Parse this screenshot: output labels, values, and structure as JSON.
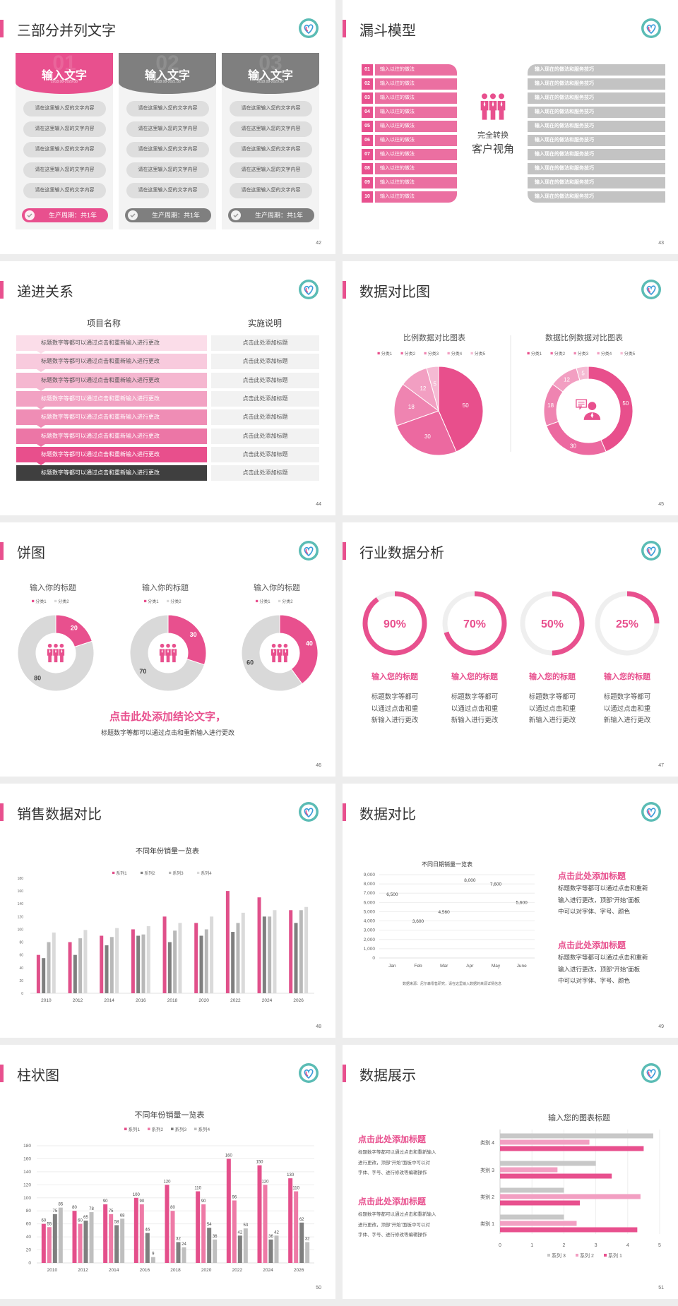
{
  "colors": {
    "accent": "#e8508e",
    "gray": "#7f7f7f",
    "light_gray": "#d9d9d9",
    "logo_teal": "#5bbcb5"
  },
  "s42": {
    "title": "三部分并列文字",
    "page": "42",
    "cards": [
      {
        "num": "01",
        "heading": "输入文字",
        "date": "2018.08-2029.08",
        "color": "#e8508e",
        "items": [
          "请在这里输入您的文字内容",
          "请在这里输入您的文字内容",
          "请在这里输入您的文字内容",
          "请在这里输入您的文字内容",
          "请在这里输入您的文字内容"
        ],
        "footer": "生产周期：共1年"
      },
      {
        "num": "02",
        "heading": "输入文字",
        "date": "2018.08-2021.08",
        "color": "#7f7f7f",
        "items": [
          "请在这里输入您的文字内容",
          "请在这里输入您的文字内容",
          "请在这里输入您的文字内容",
          "请在这里输入您的文字内容",
          "请在这里输入您的文字内容"
        ],
        "footer": "生产周期：共1年"
      },
      {
        "num": "03",
        "heading": "输入文字",
        "date": "2018.08-2029.08",
        "color": "#7f7f7f",
        "items": [
          "请在这里输入您的文字内容",
          "请在这里输入您的文字内容",
          "请在这里输入您的文字内容",
          "请在这里输入您的文字内容",
          "请在这里输入您的文字内容"
        ],
        "footer": "生产周期：共1年"
      }
    ]
  },
  "s43": {
    "title": "漏斗模型",
    "page": "43",
    "left": [
      {
        "num": "01",
        "label": "输入以往的做法"
      },
      {
        "num": "02",
        "label": "输入以往的做法"
      },
      {
        "num": "03",
        "label": "输入以往的做法"
      },
      {
        "num": "04",
        "label": "输入以往的做法"
      },
      {
        "num": "05",
        "label": "输入以往的做法"
      },
      {
        "num": "06",
        "label": "输入以往的做法"
      },
      {
        "num": "07",
        "label": "输入以往的做法"
      },
      {
        "num": "08",
        "label": "输入以往的做法"
      },
      {
        "num": "09",
        "label": "输入以往的做法"
      },
      {
        "num": "10",
        "label": "输入以往的做法"
      }
    ],
    "right": [
      "输入现在的做法和服务技巧",
      "输入现在的做法和服务技巧",
      "输入现在的做法和服务技巧",
      "输入现在的做法和服务技巧",
      "输入现在的做法和服务技巧",
      "输入现在的做法和服务技巧",
      "输入现在的做法和服务技巧",
      "输入现在的做法和服务技巧",
      "输入现在的做法和服务技巧",
      "输入现在的做法和服务技巧"
    ],
    "center_line1": "完全转换",
    "center_line2": "客户视角"
  },
  "s44": {
    "title": "递进关系",
    "page": "44",
    "col1": "项目名称",
    "col2": "实施说明",
    "rows": [
      {
        "item": "标题数字等都可以通过点击和重新输入进行更改",
        "note": "点击此处添加标题",
        "color": "#fbdde9"
      },
      {
        "item": "标题数字等都可以通过点击和重新输入进行更改",
        "note": "点击此处添加标题",
        "color": "#f8cadd"
      },
      {
        "item": "标题数字等都可以通过点击和重新输入进行更改",
        "note": "点击此处添加标题",
        "color": "#f5b7d0"
      },
      {
        "item": "标题数字等都可以通过点击和重新输入进行更改",
        "note": "点击此处添加标题",
        "color": "#f2a2c3"
      },
      {
        "item": "标题数字等都可以通过点击和重新输入进行更改",
        "note": "点击此处添加标题",
        "color": "#ef8db5"
      },
      {
        "item": "标题数字等都可以通过点击和重新输入进行更改",
        "note": "点击此处添加标题",
        "color": "#ec76a6"
      },
      {
        "item": "标题数字等都可以通过点击和重新输入进行更改",
        "note": "点击此处添加标题",
        "color": "#e84f8c"
      },
      {
        "item": "标题数字等都可以通过点击和重新输入进行更改",
        "note": "点击此处添加标题",
        "color": "#3f3f3f"
      }
    ]
  },
  "s45": {
    "title": "数据对比图",
    "page": "45"
  },
  "s46": {
    "title": "饼图",
    "page": "46",
    "conclusion": "点击此处添加结论文字，",
    "subtext": "标题数字等都可以通过点击和重新输入进行更改"
  },
  "s47": {
    "title": "行业数据分析",
    "page": "47",
    "items": [
      {
        "percent": 90,
        "label": "90%",
        "title": "输入您的标题",
        "desc": [
          "标题数字等都可",
          "以通过点击和重",
          "新输入进行更改"
        ]
      },
      {
        "percent": 70,
        "label": "70%",
        "title": "输入您的标题",
        "desc": [
          "标题数字等都可",
          "以通过点击和重",
          "新输入进行更改"
        ]
      },
      {
        "percent": 50,
        "label": "50%",
        "title": "输入您的标题",
        "desc": [
          "标题数字等都可",
          "以通过点击和重",
          "新输入进行更改"
        ]
      },
      {
        "percent": 25,
        "label": "25%",
        "title": "输入您的标题",
        "desc": [
          "标题数字等都可",
          "以通过点击和重",
          "新输入进行更改"
        ]
      }
    ]
  },
  "s48": {
    "title": "销售数据对比",
    "page": "48"
  },
  "s49": {
    "title": "数据对比",
    "page": "49",
    "blocks": [
      {
        "title": "点击此处添加标题",
        "lines": [
          "标题数字等都可以通过点击和重新",
          "输入进行更改，顶部“开始”面板",
          "中可以对字体、字号、颜色"
        ]
      },
      {
        "title": "点击此处添加标题",
        "lines": [
          "标题数字等都可以通过点击和重新",
          "输入进行更改，顶部“开始”面板",
          "中可以对字体、字号、颜色"
        ]
      }
    ]
  },
  "s50": {
    "title": "柱状图",
    "page": "50"
  },
  "s51": {
    "title": "数据展示",
    "page": "51",
    "blocks": [
      {
        "title": "点击此处添加标题",
        "lines": [
          "标题数字等都可以通过点击和重新输入",
          "进行更改，顶部“开始”面板中可以对",
          "字体、字号、进行修改等编辑操作"
        ]
      },
      {
        "title": "点击此处添加标题",
        "lines": [
          "标题数字等都可以通过点击和重新输入",
          "进行更改，顶部“开始”面板中可以对",
          "字体、字号、进行修改等编辑操作"
        ]
      }
    ]
  },
  "chart_data": [
    {
      "type": "pie",
      "title": "比例数据对比图表",
      "categories": [
        "分类1",
        "分类2",
        "分类3",
        "分类4",
        "分类5"
      ],
      "values": [
        50,
        30,
        18,
        12,
        5
      ],
      "colors": [
        "#e84f8c",
        "#ec69a0",
        "#ef84b1",
        "#f29fc2",
        "#f5bad3"
      ],
      "legend": "top"
    },
    {
      "type": "pie",
      "donut": true,
      "title": "数据比例数据对比图表",
      "categories": [
        "分类1",
        "分类2",
        "分类3",
        "分类4",
        "分类5"
      ],
      "values": [
        50,
        30,
        18,
        12,
        5
      ],
      "colors": [
        "#e84f8c",
        "#ec69a0",
        "#ef84b1",
        "#f29fc2",
        "#f5bad3"
      ],
      "legend": "top"
    },
    {
      "type": "pie",
      "donut": true,
      "title": "输入你的标题",
      "categories": [
        "分类1",
        "分类2"
      ],
      "values": [
        20,
        80
      ],
      "colors": [
        "#e8508e",
        "#d9d9d9"
      ],
      "legend": "top"
    },
    {
      "type": "pie",
      "donut": true,
      "title": "输入你的标题",
      "categories": [
        "分类1",
        "分类2"
      ],
      "values": [
        30,
        70
      ],
      "colors": [
        "#e8508e",
        "#d9d9d9"
      ],
      "legend": "top"
    },
    {
      "type": "pie",
      "donut": true,
      "title": "输入你的标题",
      "categories": [
        "分类1",
        "分类2"
      ],
      "values": [
        40,
        60
      ],
      "colors": [
        "#e8508e",
        "#d9d9d9"
      ],
      "legend": "top"
    },
    {
      "type": "bar",
      "title": "不同年份销量一览表",
      "categories": [
        "2010",
        "2012",
        "2014",
        "2016",
        "2018",
        "2020",
        "2022",
        "2024",
        "2026"
      ],
      "series": [
        {
          "name": "系列1",
          "color": "#e0508a",
          "values": [
            60,
            80,
            90,
            100,
            120,
            110,
            160,
            150,
            130
          ]
        },
        {
          "name": "系列2",
          "color": "#7f7f7f",
          "values": [
            55,
            60,
            75,
            90,
            80,
            90,
            96,
            120,
            110
          ]
        },
        {
          "name": "系列3",
          "color": "#b8b8b8",
          "values": [
            80,
            86,
            88,
            92,
            98,
            100,
            110,
            120,
            130
          ]
        },
        {
          "name": "系列4",
          "color": "#dadada",
          "values": [
            95,
            99,
            102,
            105,
            110,
            120,
            126,
            130,
            135
          ]
        }
      ],
      "ylim": [
        0,
        180
      ],
      "y_ticks": [
        "0",
        "20",
        "40",
        "60",
        "80",
        "100",
        "120",
        "140",
        "160",
        "180"
      ],
      "grid": false,
      "legend": "top"
    },
    {
      "type": "bar",
      "title": "不同日期销量一览表",
      "categories": [
        "Jan",
        "Feb",
        "Mar",
        "Apr",
        "May",
        "June"
      ],
      "values": [
        6500,
        3600,
        4560,
        8000,
        7600,
        5600
      ],
      "data_labels": [
        "6,500",
        "3,600",
        "4,560",
        "8,000",
        "7,600",
        "5,600"
      ],
      "color": "#e8508e",
      "ylim": [
        0,
        9000
      ],
      "y_ticks": [
        "0",
        "1,000",
        "2,000",
        "3,000",
        "4,000",
        "5,000",
        "6,000",
        "7,000",
        "8,000",
        "9,000"
      ],
      "grid": true,
      "source": "数据来源：尼尔森零售研究，请在这里输入数据的来源详情信息"
    },
    {
      "type": "bar",
      "title": "不同年份销量一览表",
      "categories": [
        "2010",
        "2012",
        "2014",
        "2016",
        "2018",
        "2020",
        "2022",
        "2024",
        "2026"
      ],
      "series": [
        {
          "name": "系列1",
          "color": "#e44f8b",
          "values": [
            60,
            80,
            90,
            100,
            120,
            110,
            160,
            150,
            130
          ]
        },
        {
          "name": "系列2",
          "color": "#ee7aa6",
          "values": [
            55,
            60,
            75,
            90,
            80,
            90,
            96,
            120,
            110
          ]
        },
        {
          "name": "系列3",
          "color": "#7f7f7f",
          "values": [
            75,
            65,
            58,
            46,
            32,
            54,
            42,
            36,
            62
          ]
        },
        {
          "name": "系列4",
          "color": "#bfbfbf",
          "values": [
            85,
            78,
            68,
            9,
            24,
            36,
            53,
            42,
            32
          ]
        }
      ],
      "ylim": [
        0,
        180
      ],
      "y_ticks": [
        "0",
        "20",
        "40",
        "60",
        "80",
        "100",
        "120",
        "140",
        "160",
        "180"
      ],
      "grid": true,
      "data_labels": true,
      "legend": "top"
    },
    {
      "type": "bar",
      "orientation": "horizontal",
      "title": "输入您的图表标题",
      "categories": [
        "类别 1",
        "类别 2",
        "类别 3",
        "类别 4"
      ],
      "series": [
        {
          "name": "系列 1",
          "color": "#e8508e",
          "values": [
            4.3,
            2.5,
            3.5,
            4.5
          ]
        },
        {
          "name": "系列 2",
          "color": "#f29fc2",
          "values": [
            2.4,
            4.4,
            1.8,
            2.8
          ]
        },
        {
          "name": "系列 3",
          "color": "#c8c8c8",
          "values": [
            2,
            2,
            3,
            4.8
          ]
        }
      ],
      "xlim": [
        0,
        5
      ],
      "x_ticks": [
        "0",
        "1",
        "2",
        "3",
        "4",
        "5"
      ],
      "grid": true,
      "legend": "bottom"
    }
  ]
}
